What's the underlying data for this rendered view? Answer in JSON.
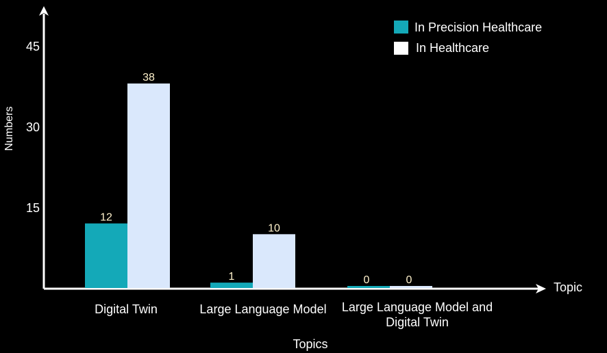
{
  "chart_data": {
    "type": "bar",
    "categories": [
      "Digital Twin",
      "Large Language Model",
      "Large Language Model and Digital Twin"
    ],
    "category_lines": [
      [
        "Digital Twin"
      ],
      [
        "Large Language Model"
      ],
      [
        "Large Language Model and",
        "Digital Twin"
      ]
    ],
    "series": [
      {
        "name": "In Precision Healthcare",
        "values": [
          12,
          1,
          0
        ],
        "color": "#14a9b8"
      },
      {
        "name": "In Healthcare",
        "values": [
          38,
          10,
          0
        ],
        "color": "#dae8fc"
      }
    ],
    "yticks": [
      15,
      30,
      45
    ],
    "ylim": [
      0,
      45
    ],
    "ylabel": "Numbers",
    "xlabel": "Topics",
    "x_axis_end_label": "Topic",
    "data_label_color": "#fff2cc",
    "legend_position": "top-right",
    "grid": false
  }
}
